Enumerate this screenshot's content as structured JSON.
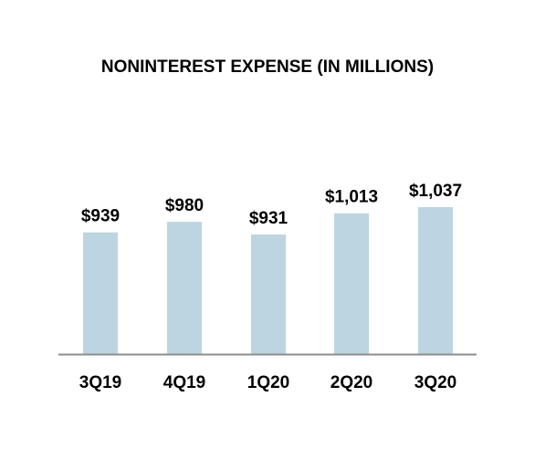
{
  "chart_data": {
    "type": "bar",
    "title": "NONINTEREST EXPENSE (IN MILLIONS)",
    "categories": [
      "3Q19",
      "4Q19",
      "1Q20",
      "2Q20",
      "3Q20"
    ],
    "values": [
      939,
      980,
      931,
      1013,
      1037
    ],
    "data_labels": [
      "$939",
      "$980",
      "$931",
      "$1,013",
      "$1,037"
    ],
    "xlabel": "",
    "ylabel": "",
    "bar_color": "#bcd5e0",
    "axis_color": "#8c8c8c",
    "grid": false,
    "legend": "none"
  }
}
